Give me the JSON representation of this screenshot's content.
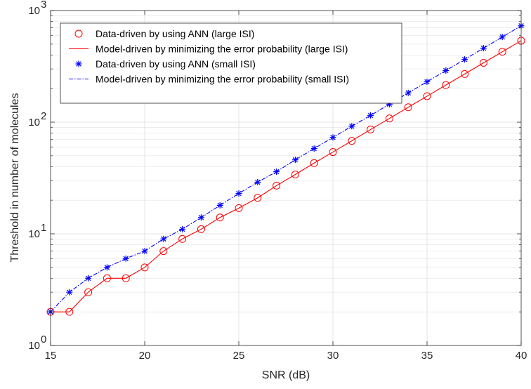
{
  "chart_data": {
    "type": "line",
    "xlabel": "SNR (dB)",
    "ylabel": "Threshold in number of molecules",
    "y_scale": "log",
    "xlim": [
      15,
      40
    ],
    "ylim": [
      1,
      1000
    ],
    "x_ticks": [
      15,
      20,
      25,
      30,
      35,
      40
    ],
    "x_tick_labels": [
      "15",
      "20",
      "25",
      "30",
      "35",
      "40"
    ],
    "y_ticks": [
      1,
      10,
      100,
      1000
    ],
    "y_tick_labels": [
      {
        "base": "10",
        "exp": "0"
      },
      {
        "base": "10",
        "exp": "1"
      },
      {
        "base": "10",
        "exp": "2"
      },
      {
        "base": "10",
        "exp": "3"
      }
    ],
    "grid": true,
    "legend_position": "top-left",
    "x": [
      15,
      16,
      17,
      18,
      19,
      20,
      21,
      22,
      23,
      24,
      25,
      26,
      27,
      28,
      29,
      30,
      31,
      32,
      33,
      34,
      35,
      36,
      37,
      38,
      39,
      40
    ],
    "series": [
      {
        "name": "Data-driven by using ANN (large ISI)",
        "marker": "circle",
        "line": "none",
        "color": "#ff0000",
        "values": [
          2,
          2,
          3,
          4,
          4,
          5,
          7,
          9,
          11,
          14,
          17,
          21,
          27,
          34,
          43,
          54,
          68,
          86,
          108,
          136,
          171,
          215,
          270,
          340,
          427,
          537
        ]
      },
      {
        "name": "Model-driven by minimizing the error probability (large ISI)",
        "marker": "none",
        "line": "solid",
        "color": "#ff0000",
        "values": [
          2,
          2,
          3,
          4,
          4,
          5,
          7,
          9,
          11,
          14,
          17,
          21,
          27,
          34,
          43,
          54,
          68,
          86,
          108,
          136,
          171,
          215,
          270,
          340,
          427,
          537
        ]
      },
      {
        "name": "Data-driven by using ANN (small ISI)",
        "marker": "asterisk",
        "line": "none",
        "color": "#0000ff",
        "values": [
          2,
          3,
          4,
          5,
          6,
          7,
          9,
          11,
          14,
          18,
          23,
          29,
          36,
          46,
          58,
          73,
          92,
          115,
          145,
          183,
          230,
          290,
          365,
          460,
          580,
          730
        ]
      },
      {
        "name": "Model-driven by minimizing the error probability (small ISI)",
        "marker": "none",
        "line": "dashdot",
        "color": "#0000ff",
        "values": [
          2,
          3,
          4,
          5,
          6,
          7,
          9,
          11,
          14,
          18,
          23,
          29,
          36,
          46,
          58,
          73,
          92,
          115,
          145,
          183,
          230,
          290,
          365,
          460,
          580,
          730
        ]
      }
    ]
  }
}
